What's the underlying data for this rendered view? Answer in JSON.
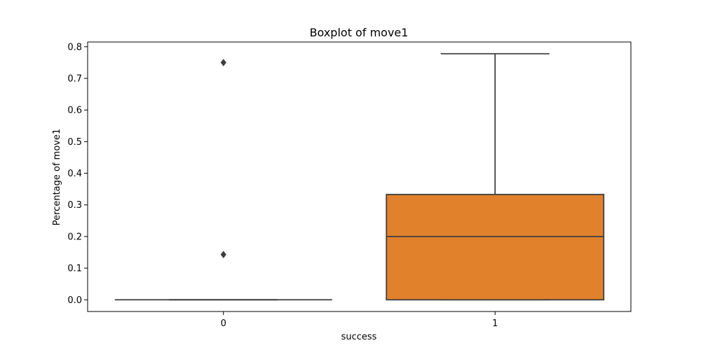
{
  "chart_data": {
    "type": "box",
    "title": "Boxplot of move1",
    "xlabel": "success",
    "ylabel": "Percentage of move1",
    "ylim": [
      -0.037,
      0.815
    ],
    "yticks": [
      "0.0",
      "0.1",
      "0.2",
      "0.3",
      "0.4",
      "0.5",
      "0.6",
      "0.7",
      "0.8"
    ],
    "grid": false,
    "legend": "none",
    "categories": [
      "0",
      "1"
    ],
    "boxes": [
      {
        "category": "0",
        "min": 0.0,
        "q1": 0.0,
        "median": 0.0,
        "q3": 0.0,
        "max": 0.0,
        "outliers": [
          0.75,
          0.143
        ],
        "color": "#3274a1"
      },
      {
        "category": "1",
        "min": 0.0,
        "q1": 0.0,
        "median": 0.2,
        "q3": 0.333,
        "max": 0.778,
        "outliers": [],
        "color": "#e1812c"
      }
    ]
  }
}
